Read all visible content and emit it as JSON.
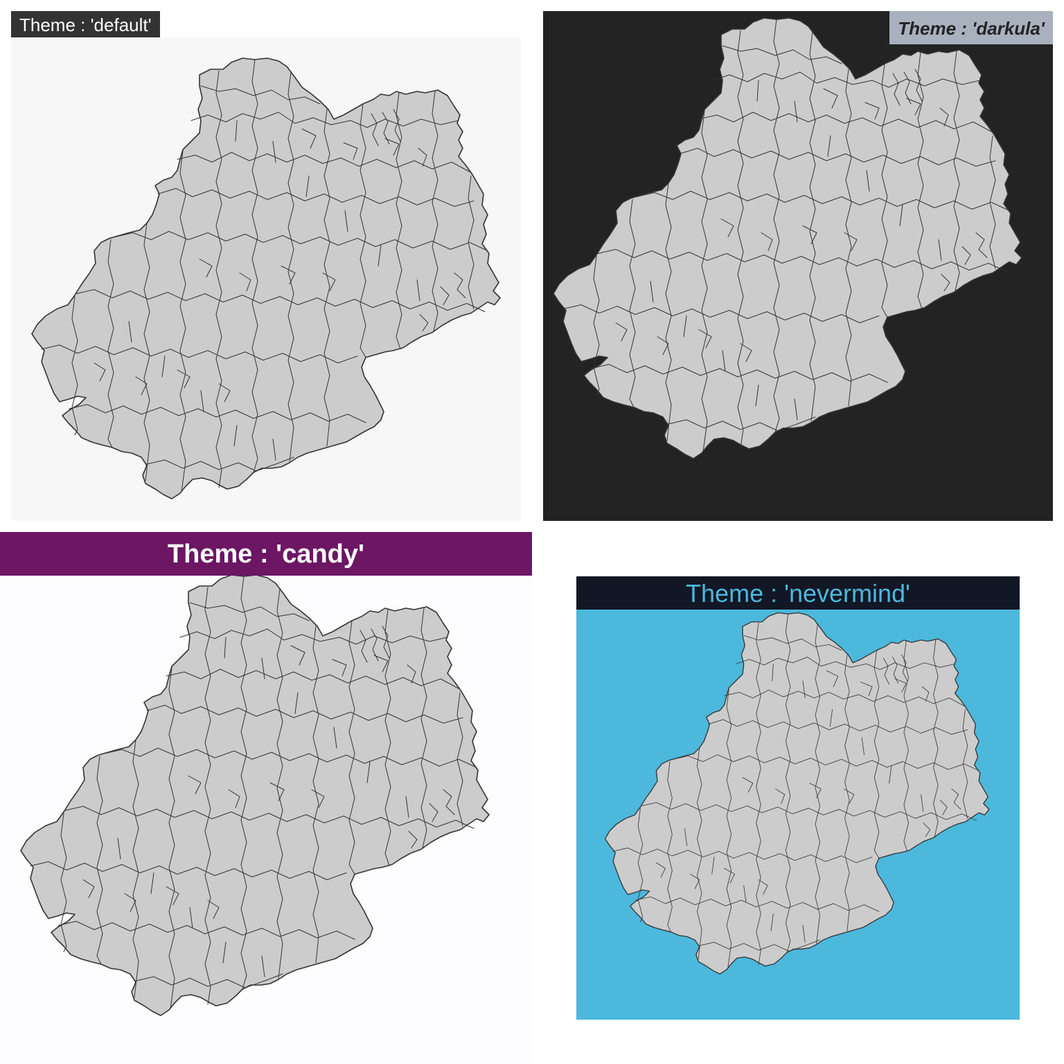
{
  "panels": {
    "default": {
      "title": "Theme : 'default'",
      "background": "#F7F7F7",
      "header_bg": "#333333",
      "header_fg": "#FFFFFF",
      "map_fill": "#CCCCCC",
      "border": "#333333"
    },
    "darkula": {
      "title": "Theme : 'darkula'",
      "background": "#232323",
      "header_bg": "#A9B1BF",
      "header_fg": "#232323",
      "map_fill": "#CCCCCC",
      "border": "#333333"
    },
    "candy": {
      "title": "Theme : 'candy'",
      "background": "#FDFDFF",
      "header_bg": "#6C1664",
      "header_fg": "#FFFFFF",
      "map_fill": "#CCCCCC",
      "border": "#333333"
    },
    "nevermind": {
      "title": "Theme : 'nevermind'",
      "background": "#4CB8DC",
      "header_bg": "#121725",
      "header_fg": "#4CB8DC",
      "map_fill": "#CCCCCC",
      "border": "#333333"
    }
  }
}
